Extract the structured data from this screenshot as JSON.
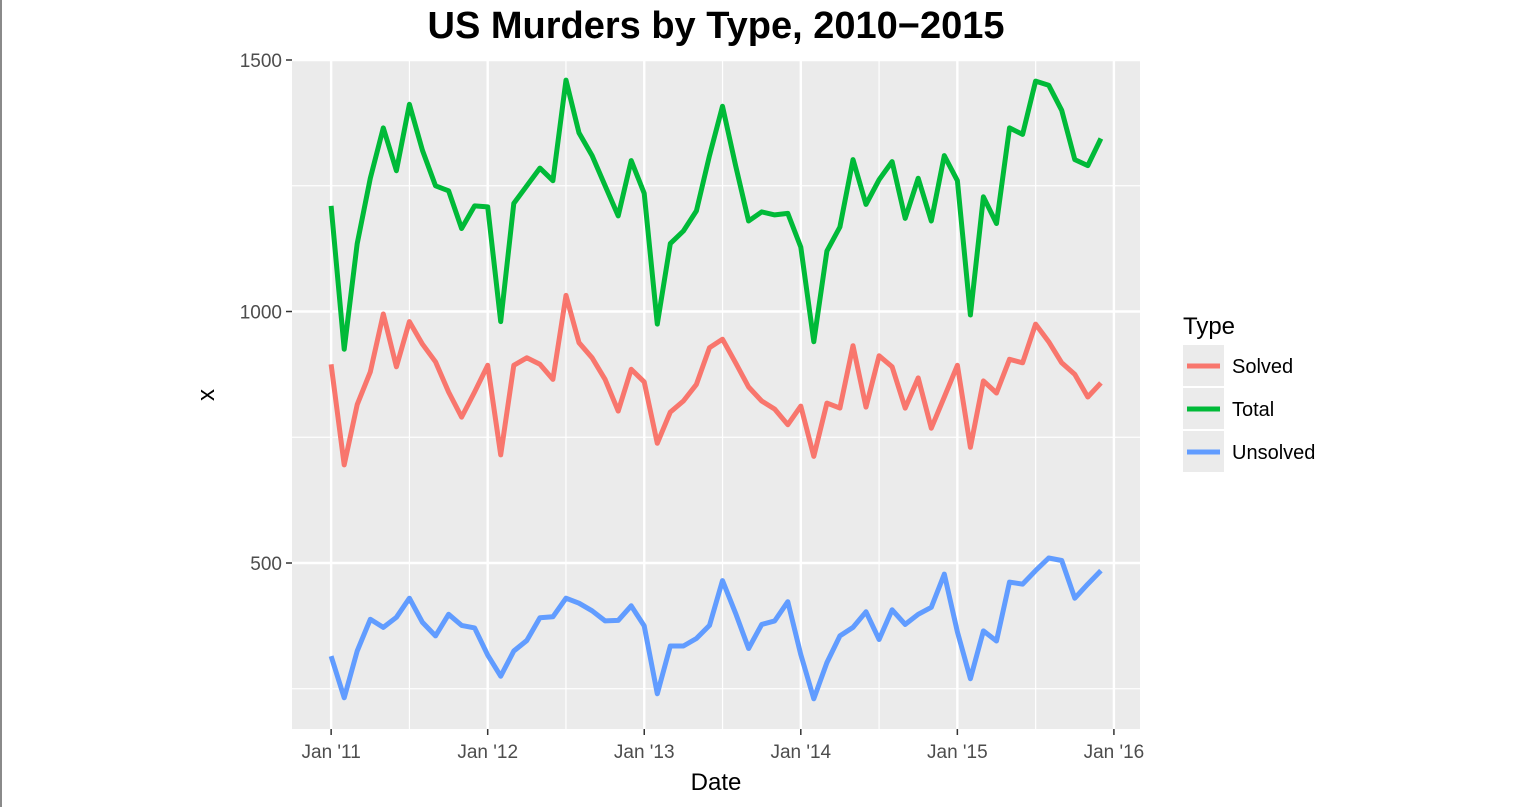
{
  "chart_data": {
    "type": "line",
    "title": "US Murders by Type, 2010−2015",
    "xlabel": "Date",
    "ylabel": "x",
    "x_ticks": [
      {
        "label": "Jan '11",
        "date": "2011-01"
      },
      {
        "label": "Jan '12",
        "date": "2012-01"
      },
      {
        "label": "Jan '13",
        "date": "2013-01"
      },
      {
        "label": "Jan '14",
        "date": "2014-01"
      },
      {
        "label": "Jan '15",
        "date": "2015-01"
      },
      {
        "label": "Jan '16",
        "date": "2016-01"
      }
    ],
    "y_ticks": [
      500,
      1000,
      1500
    ],
    "ylim": [
      170,
      1500
    ],
    "xlim": [
      "2010-10",
      "2016-03"
    ],
    "grid": true,
    "legend": {
      "title": "Type",
      "position": "right"
    },
    "x": [
      "2011-01",
      "2011-02",
      "2011-03",
      "2011-04",
      "2011-05",
      "2011-06",
      "2011-07",
      "2011-08",
      "2011-09",
      "2011-10",
      "2011-11",
      "2011-12",
      "2012-01",
      "2012-02",
      "2012-03",
      "2012-04",
      "2012-05",
      "2012-06",
      "2012-07",
      "2012-08",
      "2012-09",
      "2012-10",
      "2012-11",
      "2012-12",
      "2013-01",
      "2013-02",
      "2013-03",
      "2013-04",
      "2013-05",
      "2013-06",
      "2013-07",
      "2013-08",
      "2013-09",
      "2013-10",
      "2013-11",
      "2013-12",
      "2014-01",
      "2014-02",
      "2014-03",
      "2014-04",
      "2014-05",
      "2014-06",
      "2014-07",
      "2014-08",
      "2014-09",
      "2014-10",
      "2014-11",
      "2014-12",
      "2015-01",
      "2015-02",
      "2015-03",
      "2015-04",
      "2015-05",
      "2015-06",
      "2015-07",
      "2015-08",
      "2015-09",
      "2015-10",
      "2015-11",
      "2015-12"
    ],
    "series": [
      {
        "name": "Solved",
        "color": "#f8766d",
        "values": [
          895,
          695,
          815,
          880,
          995,
          890,
          980,
          935,
          900,
          840,
          790,
          840,
          893,
          715,
          893,
          908,
          895,
          865,
          1032,
          938,
          908,
          865,
          802,
          885,
          860,
          738,
          800,
          822,
          855,
          928,
          945,
          898,
          850,
          822,
          806,
          775,
          812,
          712,
          818,
          808,
          932,
          810,
          912,
          890,
          808,
          868,
          768,
          830,
          893,
          730,
          862,
          838,
          905,
          898,
          975,
          940,
          898,
          875,
          830,
          858
        ]
      },
      {
        "name": "Total",
        "color": "#00ba38",
        "values": [
          1210,
          925,
          1135,
          1265,
          1365,
          1280,
          1412,
          1320,
          1250,
          1240,
          1165,
          1210,
          1208,
          980,
          1215,
          1250,
          1285,
          1260,
          1460,
          1355,
          1310,
          1250,
          1190,
          1300,
          1235,
          975,
          1135,
          1160,
          1200,
          1310,
          1408,
          1290,
          1180,
          1198,
          1192,
          1195,
          1128,
          940,
          1120,
          1168,
          1302,
          1213,
          1262,
          1298,
          1185,
          1265,
          1180,
          1310,
          1260,
          993,
          1228,
          1175,
          1365,
          1352,
          1458,
          1450,
          1400,
          1302,
          1290,
          1344
        ]
      },
      {
        "name": "Unsolved",
        "color": "#619cff",
        "values": [
          315,
          232,
          325,
          388,
          372,
          392,
          430,
          382,
          355,
          398,
          376,
          371,
          317,
          275,
          325,
          346,
          391,
          393,
          430,
          420,
          405,
          385,
          386,
          415,
          375,
          240,
          335,
          335,
          350,
          376,
          465,
          400,
          330,
          378,
          385,
          423,
          318,
          230,
          302,
          355,
          372,
          403,
          348,
          407,
          378,
          398,
          412,
          478,
          363,
          270,
          365,
          345,
          462,
          458,
          485,
          510,
          505,
          430,
          458,
          485
        ]
      }
    ]
  }
}
